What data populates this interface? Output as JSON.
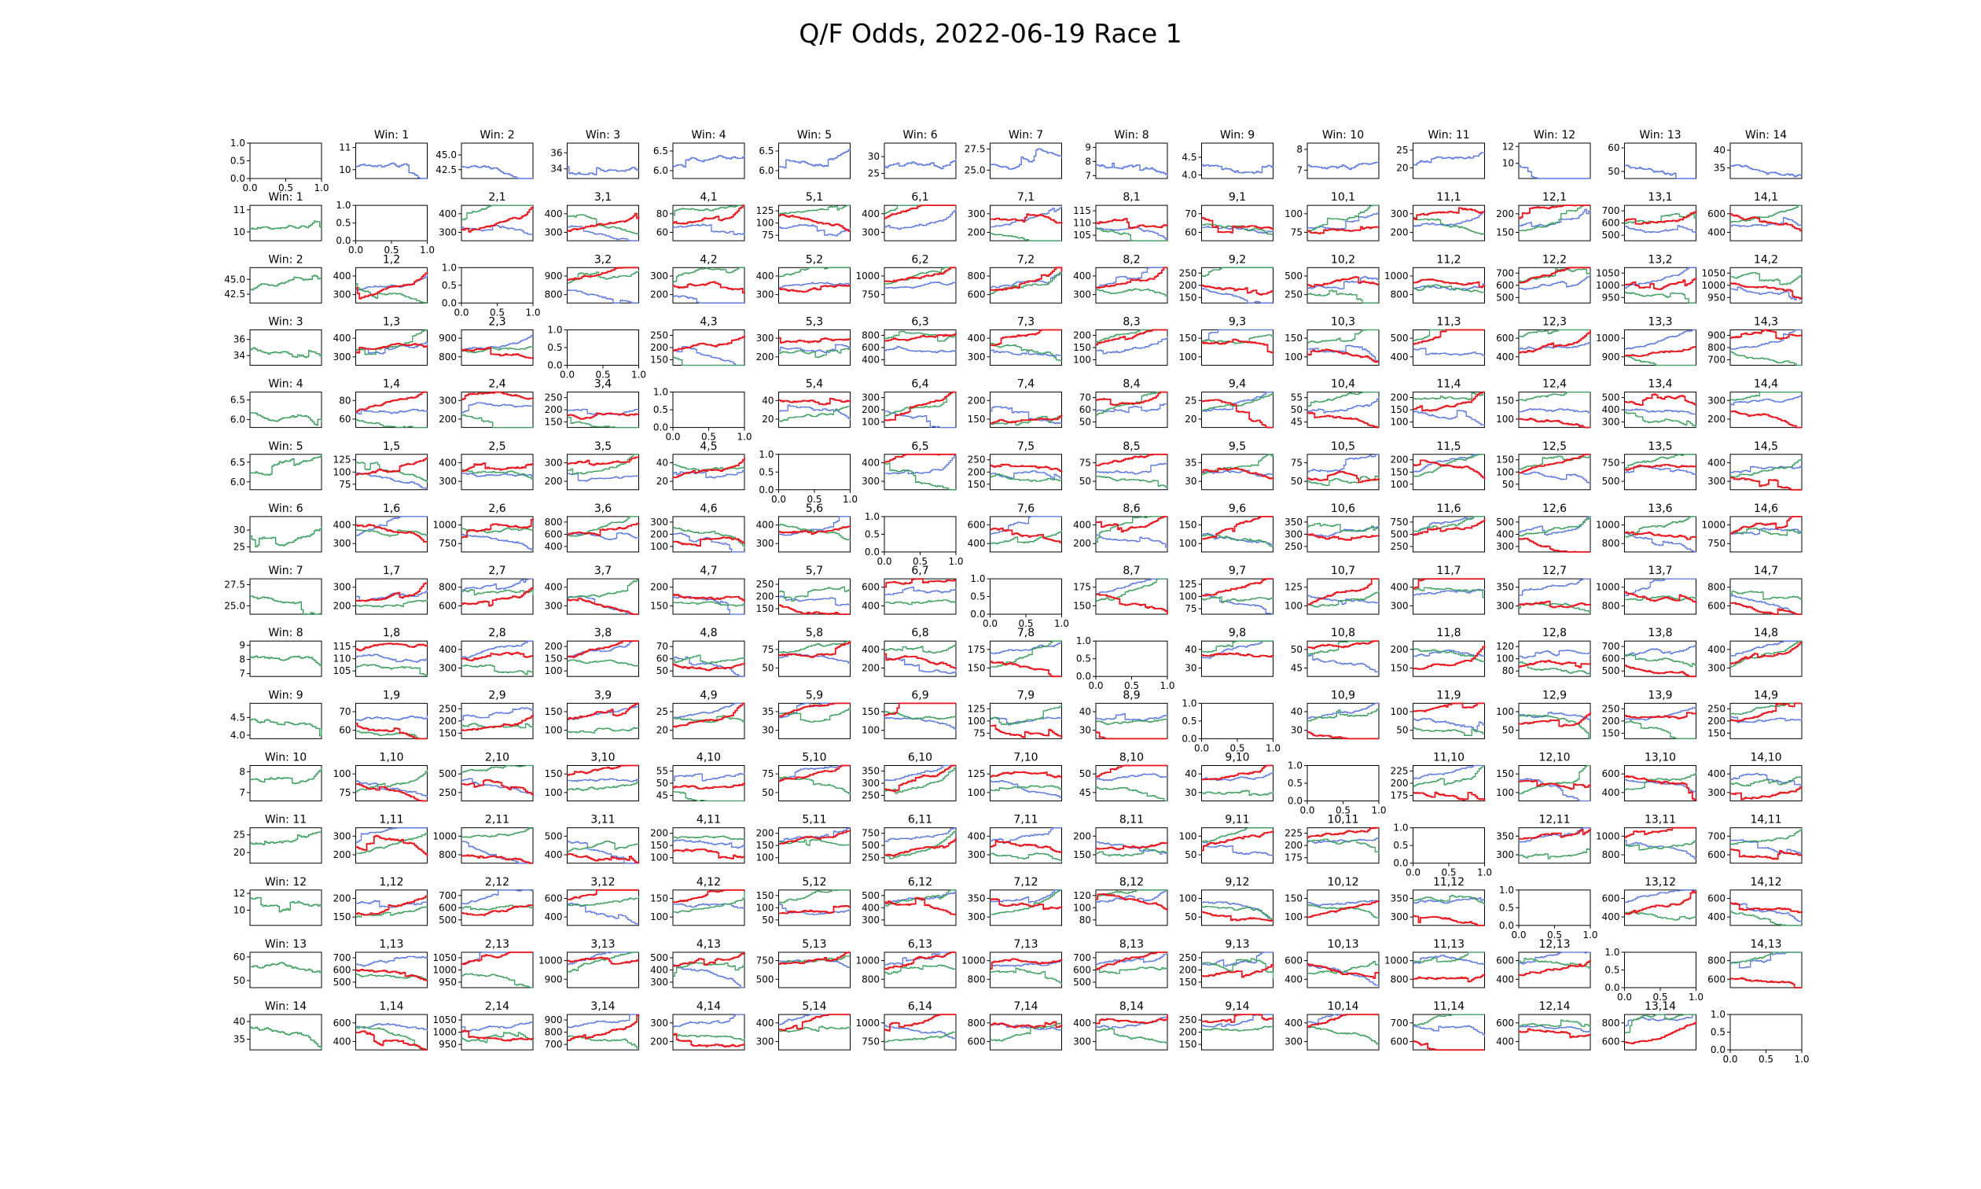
{
  "title": "Q/F Odds, 2022-06-19 Race 1",
  "colors": {
    "blue": "#5a76e0",
    "green": "#3b9e5d",
    "red": "#e8131b"
  },
  "chart_data": {
    "type": "line",
    "title": "Q/F Odds, 2022-06-19 Race 1",
    "grid": false,
    "rows": 15,
    "cols": 15,
    "layout": "row 0 = Win odds per horse (blue, with titles Win: N); column 0 = Win odds (green); off-diagonal cell (r,c) titled 'c,r' shows three odds series (blue, green, red); diagonal cells are empty axes 0-1",
    "empty_axis_ticks": [
      "0.0",
      "0.5",
      "1.0"
    ],
    "empty_cells": [
      [
        0,
        0
      ],
      [
        1,
        1
      ],
      [
        2,
        2
      ],
      [
        3,
        3
      ],
      [
        4,
        4
      ],
      [
        5,
        5
      ],
      [
        6,
        6
      ],
      [
        7,
        7
      ],
      [
        8,
        8
      ],
      [
        9,
        9
      ],
      [
        10,
        10
      ],
      [
        11,
        11
      ],
      [
        12,
        12
      ],
      [
        13,
        13
      ],
      [
        14,
        14
      ]
    ],
    "win_odds": {
      "1": {
        "title": "Win: 1",
        "yticks": [
          "10",
          "11"
        ],
        "ylim": [
          9.6,
          11.2
        ]
      },
      "2": {
        "title": "Win: 2",
        "yticks": [
          "42.5",
          "45.0"
        ],
        "ylim": [
          41.0,
          47.0
        ]
      },
      "3": {
        "title": "Win: 3",
        "yticks": [
          "34",
          "36"
        ],
        "ylim": [
          32.8,
          37.2
        ]
      },
      "4": {
        "title": "Win: 4",
        "yticks": [
          "6.0",
          "6.5"
        ],
        "ylim": [
          5.8,
          6.7
        ]
      },
      "5": {
        "title": "Win: 5",
        "yticks": [
          "6.0",
          "6.5"
        ],
        "ylim": [
          5.8,
          6.7
        ]
      },
      "6": {
        "title": "Win: 6",
        "yticks": [
          "25",
          "30"
        ],
        "ylim": [
          23.5,
          34
        ]
      },
      "7": {
        "title": "Win: 7",
        "yticks": [
          "25.0",
          "27.5"
        ],
        "ylim": [
          24.0,
          28.2
        ]
      },
      "8": {
        "title": "Win: 8",
        "yticks": [
          "7",
          "8",
          "9"
        ],
        "ylim": [
          6.8,
          9.3
        ]
      },
      "9": {
        "title": "Win: 9",
        "yticks": [
          "4.0",
          "4.5"
        ],
        "ylim": [
          3.9,
          4.9
        ]
      },
      "10": {
        "title": "Win: 10",
        "yticks": [
          "7",
          "8"
        ],
        "ylim": [
          6.6,
          8.3
        ]
      },
      "11": {
        "title": "Win: 11",
        "yticks": [
          "20",
          "25"
        ],
        "ylim": [
          17,
          27
        ]
      },
      "12": {
        "title": "Win: 12",
        "yticks": [
          "10",
          "12"
        ],
        "ylim": [
          8.2,
          12.4
        ]
      },
      "13": {
        "title": "Win: 13",
        "yticks": [
          "50",
          "60"
        ],
        "ylim": [
          47,
          62
        ]
      },
      "14": {
        "title": "Win: 14",
        "yticks": [
          "35",
          "40"
        ],
        "ylim": [
          32,
          42
        ]
      }
    },
    "pair_yticks": {
      "1,2": [
        "300",
        "400"
      ],
      "1,3": [
        "300",
        "400"
      ],
      "1,4": [
        "60",
        "80"
      ],
      "1,5": [
        "75",
        "100",
        "125"
      ],
      "1,6": [
        "300",
        "400"
      ],
      "1,7": [
        "200",
        "300"
      ],
      "1,8": [
        "105",
        "110",
        "115"
      ],
      "1,9": [
        "60",
        "70"
      ],
      "1,10": [
        "75",
        "100"
      ],
      "1,11": [
        "200",
        "300"
      ],
      "1,12": [
        "150",
        "200"
      ],
      "1,13": [
        "500",
        "600",
        "700"
      ],
      "1,14": [
        "400",
        "600"
      ],
      "2,3": [
        "800",
        "900"
      ],
      "2,4": [
        "200",
        "300"
      ],
      "2,5": [
        "300",
        "400"
      ],
      "2,6": [
        "750",
        "1000"
      ],
      "2,7": [
        "600",
        "800"
      ],
      "2,8": [
        "300",
        "400"
      ],
      "2,9": [
        "150",
        "200",
        "250"
      ],
      "2,10": [
        "250",
        "500"
      ],
      "2,11": [
        "800",
        "1000"
      ],
      "2,12": [
        "500",
        "600",
        "700"
      ],
      "2,13": [
        "950",
        "1000",
        "1050"
      ],
      "2,14": [
        "950",
        "1000",
        "1050"
      ],
      "3,4": [
        "150",
        "200",
        "250"
      ],
      "3,5": [
        "200",
        "300"
      ],
      "3,6": [
        "400",
        "600",
        "800"
      ],
      "3,7": [
        "300",
        "400"
      ],
      "3,8": [
        "100",
        "150",
        "200"
      ],
      "3,9": [
        "100",
        "150"
      ],
      "3,10": [
        "100",
        "150"
      ],
      "3,11": [
        "400",
        "500"
      ],
      "3,12": [
        "400",
        "600"
      ],
      "3,13": [
        "900",
        "1000"
      ],
      "3,14": [
        "700",
        "800",
        "900"
      ],
      "4,5": [
        "20",
        "40"
      ],
      "4,6": [
        "100",
        "200",
        "300"
      ],
      "4,7": [
        "150",
        "200"
      ],
      "4,8": [
        "50",
        "60",
        "70"
      ],
      "4,9": [
        "20",
        "25"
      ],
      "4,10": [
        "45",
        "50",
        "55"
      ],
      "4,11": [
        "100",
        "150",
        "200"
      ],
      "4,12": [
        "100",
        "150"
      ],
      "4,13": [
        "300",
        "400",
        "500"
      ],
      "4,14": [
        "200",
        "300"
      ],
      "5,6": [
        "300",
        "400"
      ],
      "5,7": [
        "150",
        "200",
        "250"
      ],
      "5,8": [
        "50",
        "75"
      ],
      "5,9": [
        "30",
        "35"
      ],
      "5,10": [
        "50",
        "75"
      ],
      "5,11": [
        "100",
        "150",
        "200"
      ],
      "5,12": [
        "50",
        "100",
        "150"
      ],
      "5,13": [
        "500",
        "750"
      ],
      "5,14": [
        "300",
        "400"
      ],
      "6,7": [
        "400",
        "600"
      ],
      "6,8": [
        "200",
        "400"
      ],
      "6,9": [
        "100",
        "150"
      ],
      "6,10": [
        "250",
        "300",
        "350"
      ],
      "6,11": [
        "250",
        "500",
        "750"
      ],
      "6,12": [
        "300",
        "400",
        "500"
      ],
      "6,13": [
        "800",
        "1000"
      ],
      "6,14": [
        "750",
        "1000"
      ],
      "7,8": [
        "150",
        "175"
      ],
      "7,9": [
        "75",
        "100",
        "125"
      ],
      "7,10": [
        "100",
        "125"
      ],
      "7,11": [
        "300",
        "400"
      ],
      "7,12": [
        "300",
        "350"
      ],
      "7,13": [
        "800",
        "1000"
      ],
      "7,14": [
        "600",
        "800"
      ],
      "8,9": [
        "30",
        "40"
      ],
      "8,10": [
        "45",
        "50"
      ],
      "8,11": [
        "150",
        "200"
      ],
      "8,12": [
        "80",
        "100",
        "120"
      ],
      "8,13": [
        "500",
        "600",
        "700"
      ],
      "8,14": [
        "300",
        "400"
      ],
      "9,10": [
        "30",
        "40"
      ],
      "9,11": [
        "50",
        "100"
      ],
      "9,12": [
        "50",
        "100"
      ],
      "9,13": [
        "150",
        "200",
        "250"
      ],
      "9,14": [
        "150",
        "200",
        "250"
      ],
      "10,11": [
        "175",
        "200",
        "225"
      ],
      "10,12": [
        "100",
        "150"
      ],
      "10,13": [
        "400",
        "600"
      ],
      "10,14": [
        "300",
        "400"
      ],
      "11,12": [
        "300",
        "350"
      ],
      "11,13": [
        "800",
        "1000"
      ],
      "11,14": [
        "600",
        "700"
      ],
      "12,13": [
        "400",
        "600"
      ],
      "12,14": [
        "400",
        "600"
      ],
      "13,14": [
        "600",
        "800"
      ]
    }
  }
}
